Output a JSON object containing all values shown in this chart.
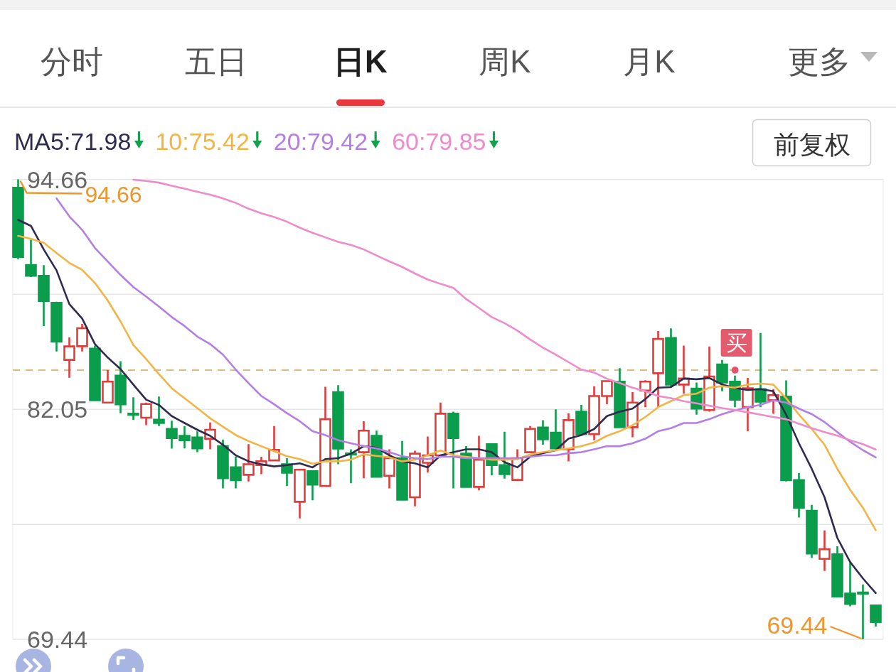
{
  "chart_data": {
    "type": "candlestick",
    "categories": [
      null,
      null,
      null,
      null,
      null,
      null,
      null,
      null,
      null,
      null,
      null,
      null,
      null,
      null,
      null,
      null,
      null,
      null,
      null,
      null,
      null,
      null,
      null,
      null,
      null,
      null,
      null,
      null,
      null,
      null,
      null,
      null,
      null,
      null,
      null,
      null,
      null,
      null,
      null,
      null,
      null,
      null,
      null,
      null,
      null,
      null,
      null,
      null,
      null,
      null,
      null,
      null,
      null,
      null,
      null,
      null,
      null,
      null,
      null,
      null,
      null,
      null,
      null,
      null,
      null,
      null,
      null,
      null
    ],
    "ohlc": [
      [
        94.2,
        94.66,
        90.29,
        90.41
      ],
      [
        89.96,
        91.35,
        89.3,
        89.37
      ],
      [
        89.37,
        89.96,
        86.62,
        87.99
      ],
      [
        87.89,
        87.95,
        85.22,
        85.76
      ],
      [
        84.76,
        85.99,
        83.78,
        85.5
      ],
      [
        85.51,
        86.73,
        85.22,
        86.5
      ],
      [
        85.38,
        85.55,
        82.5,
        82.55
      ],
      [
        82.42,
        84.2,
        82.42,
        83.57
      ],
      [
        83.9,
        84.69,
        81.84,
        82.32
      ],
      [
        81.81,
        82.71,
        81.48,
        81.76
      ],
      [
        81.59,
        82.42,
        81.18,
        82.34
      ],
      [
        81.48,
        82.75,
        81.13,
        81.3
      ],
      [
        80.98,
        81.43,
        79.9,
        80.47
      ],
      [
        80.6,
        81.13,
        79.91,
        80.36
      ],
      [
        80.51,
        80.84,
        79.7,
        79.91
      ],
      [
        80.44,
        81.33,
        79.86,
        80.93
      ],
      [
        80.03,
        80.39,
        77.72,
        78.27
      ],
      [
        78.87,
        79.45,
        77.72,
        78.17
      ],
      [
        78.46,
        80.14,
        78.1,
        79.04
      ],
      [
        78.99,
        79.45,
        78.5,
        79.2
      ],
      [
        79.25,
        81.13,
        79.25,
        79.83
      ],
      [
        79.04,
        79.37,
        77.84,
        78.58
      ],
      [
        76.98,
        78.74,
        76.07,
        78.74
      ],
      [
        78.66,
        78.71,
        77.06,
        77.92
      ],
      [
        77.85,
        83.29,
        77.85,
        81.51
      ],
      [
        82.99,
        83.37,
        79.04,
        79.9
      ],
      [
        79.62,
        79.86,
        78.0,
        79.58
      ],
      [
        79.7,
        81.4,
        78.27,
        80.88
      ],
      [
        80.6,
        80.88,
        78.35,
        78.35
      ],
      [
        78.41,
        79.86,
        77.72,
        79.37
      ],
      [
        79.37,
        80.32,
        77.1,
        77.1
      ],
      [
        77.23,
        79.78,
        76.73,
        79.62
      ],
      [
        79.12,
        80.56,
        78.58,
        79.53
      ],
      [
        79.53,
        82.42,
        79.53,
        81.81
      ],
      [
        81.81,
        81.92,
        77.72,
        80.47
      ],
      [
        79.62,
        80.03,
        77.8,
        77.8
      ],
      [
        77.8,
        80.6,
        77.61,
        79.29
      ],
      [
        80.14,
        80.19,
        78.43,
        78.99
      ],
      [
        78.99,
        80.82,
        78.25,
        78.5
      ],
      [
        78.18,
        79.86,
        78.18,
        79.37
      ],
      [
        79.7,
        81.13,
        79.7,
        80.98
      ],
      [
        81.05,
        81.46,
        80.11,
        80.41
      ],
      [
        80.77,
        82.05,
        79.91,
        79.91
      ],
      [
        79.86,
        81.84,
        79.2,
        81.46
      ],
      [
        81.92,
        82.29,
        80.69,
        80.69
      ],
      [
        80.69,
        83.32,
        80.36,
        82.78
      ],
      [
        82.78,
        83.6,
        82.33,
        83.6
      ],
      [
        83.57,
        84.31,
        81.07,
        81.07
      ],
      [
        81.07,
        82.99,
        80.52,
        82.42
      ],
      [
        83.08,
        83.65,
        82.17,
        83.57
      ],
      [
        84.03,
        86.34,
        82.17,
        85.91
      ],
      [
        85.96,
        86.49,
        83.27,
        83.41
      ],
      [
        83.41,
        85.55,
        82.91,
        83.74
      ],
      [
        83.19,
        83.52,
        81.76,
        82.09
      ],
      [
        82.01,
        85.5,
        81.92,
        83.85
      ],
      [
        84.51,
        84.76,
        83.04,
        83.52
      ],
      [
        83.57,
        83.9,
        82.17,
        82.58
      ],
      [
        82.17,
        83.77,
        80.85,
        83.21
      ],
      [
        83.16,
        86.24,
        82.17,
        82.47
      ],
      [
        82.55,
        83.16,
        81.81,
        82.83
      ],
      [
        82.75,
        83.64,
        78.1,
        78.17
      ],
      [
        78.17,
        78.55,
        76.12,
        76.65
      ],
      [
        76.49,
        76.81,
        73.9,
        74.15
      ],
      [
        73.85,
        75.41,
        73.19,
        74.38
      ],
      [
        74.1,
        74.54,
        71.74,
        71.79
      ],
      [
        71.95,
        73.65,
        71.25,
        71.38
      ],
      [
        72.0,
        72.45,
        69.44,
        71.95
      ],
      [
        71.3,
        71.3,
        70.14,
        70.39
      ]
    ],
    "colors": [
      "#0a9d4b",
      "#0a9d4b",
      "#0a9d4b",
      "#0a9d4b",
      "#e03c3c",
      "#e03c3c",
      "#0a9d4b",
      "#e03c3c",
      "#0a9d4b",
      "#0a9d4b",
      "#e03c3c",
      "#0a9d4b",
      "#0a9d4b",
      "#0a9d4b",
      "#0a9d4b",
      "#e03c3c",
      "#0a9d4b",
      "#0a9d4b",
      "#e03c3c",
      "#e03c3c",
      "#e03c3c",
      "#0a9d4b",
      "#e03c3c",
      "#0a9d4b",
      "#e03c3c",
      "#0a9d4b",
      "#0a9d4b",
      "#e03c3c",
      "#0a9d4b",
      "#e03c3c",
      "#0a9d4b",
      "#e03c3c",
      "#e03c3c",
      "#e03c3c",
      "#0a9d4b",
      "#0a9d4b",
      "#e03c3c",
      "#0a9d4b",
      "#0a9d4b",
      "#e03c3c",
      "#e03c3c",
      "#0a9d4b",
      "#0a9d4b",
      "#e03c3c",
      "#0a9d4b",
      "#e03c3c",
      "#e03c3c",
      "#0a9d4b",
      "#e03c3c",
      "#e03c3c",
      "#e03c3c",
      "#0a9d4b",
      "#e03c3c",
      "#0a9d4b",
      "#e03c3c",
      "#0a9d4b",
      "#0a9d4b",
      "#e03c3c",
      "#0a9d4b",
      "#e03c3c",
      "#0a9d4b",
      "#0a9d4b",
      "#0a9d4b",
      "#e03c3c",
      "#0a9d4b",
      "#0a9d4b",
      "#0a9d4b",
      "#0a9d4b"
    ],
    "series": [
      {
        "type": "line",
        "name": "MA5:71.98",
        "color": "#2e2b4f",
        "values": [
          92.44,
          92.11,
          90.82,
          89.67,
          87.82,
          87.03,
          85.63,
          84.89,
          84.26,
          83.41,
          82.58,
          82.29,
          81.68,
          81.3,
          80.93,
          80.6,
          80.11,
          79.53,
          79.2,
          79.04,
          78.92,
          78.99,
          79.09,
          78.87,
          79.32,
          79.37,
          79.62,
          80.03,
          79.95,
          79.53,
          79.2,
          79.09,
          78.87,
          79.53,
          79.7,
          79.86,
          79.86,
          79.7,
          79.16,
          78.87,
          79.45,
          79.65,
          79.81,
          80.44,
          80.64,
          80.97,
          81.68,
          81.92,
          82.09,
          82.61,
          83.24,
          83.27,
          83.74,
          83.7,
          83.77,
          83.41,
          83.22,
          83.11,
          83.16,
          83.04,
          81.76,
          80.19,
          78.79,
          77.23,
          75.0,
          73.68,
          72.78,
          71.98
        ]
      },
      {
        "type": "line",
        "name": "10:75.42",
        "color": "#f2b545",
        "values": [
          91.56,
          91.4,
          91.18,
          90.62,
          90.08,
          89.7,
          88.98,
          88.02,
          86.87,
          85.58,
          84.81,
          83.98,
          83.21,
          82.66,
          82.12,
          81.56,
          81.1,
          80.64,
          80.31,
          80.03,
          79.75,
          79.48,
          79.32,
          79.07,
          79.2,
          79.2,
          79.29,
          79.58,
          79.5,
          79.42,
          79.2,
          79.29,
          79.53,
          79.8,
          79.53,
          79.45,
          79.37,
          79.29,
          79.29,
          79.32,
          79.58,
          79.7,
          79.81,
          79.91,
          80.03,
          80.23,
          80.6,
          80.85,
          81.18,
          81.63,
          82.17,
          82.5,
          82.83,
          82.91,
          83.24,
          83.32,
          83.24,
          83.41,
          83.46,
          83.41,
          82.66,
          81.76,
          80.97,
          80.11,
          78.79,
          77.64,
          76.65,
          75.42
        ]
      },
      {
        "type": "line",
        "name": "20:79.42",
        "color": "#b47fe3",
        "values": [
          null,
          null,
          null,
          93.62,
          92.63,
          91.89,
          90.9,
          90.16,
          89.42,
          88.76,
          88.23,
          87.69,
          87.11,
          86.62,
          86.04,
          85.63,
          85.05,
          84.23,
          83.49,
          82.78,
          82.33,
          81.84,
          81.4,
          80.85,
          80.64,
          80.36,
          80.19,
          80.03,
          79.91,
          79.7,
          79.48,
          79.37,
          79.32,
          79.45,
          79.45,
          79.37,
          79.37,
          79.37,
          79.37,
          79.37,
          79.45,
          79.53,
          79.53,
          79.65,
          79.7,
          79.86,
          80.03,
          80.03,
          80.19,
          80.44,
          80.85,
          81.02,
          81.3,
          81.3,
          81.51,
          81.79,
          81.99,
          82.17,
          82.29,
          82.55,
          82.42,
          82.09,
          81.79,
          81.35,
          80.8,
          80.27,
          79.81,
          79.42
        ]
      },
      {
        "type": "line",
        "name": "60:79.85",
        "color": "#ee8ccb",
        "values": [
          null,
          null,
          null,
          null,
          null,
          null,
          null,
          null,
          null,
          94.64,
          94.57,
          94.48,
          94.31,
          94.15,
          93.98,
          93.82,
          93.62,
          93.37,
          93.05,
          92.8,
          92.6,
          92.34,
          92.01,
          91.73,
          91.48,
          91.23,
          91.07,
          90.82,
          90.49,
          90.16,
          89.86,
          89.5,
          89.17,
          88.93,
          88.71,
          88.1,
          87.61,
          87.11,
          86.78,
          86.37,
          85.88,
          85.43,
          85.05,
          84.64,
          84.23,
          84.07,
          83.73,
          83.49,
          83.24,
          83.04,
          82.78,
          82.66,
          82.5,
          82.38,
          82.25,
          82.12,
          82.01,
          81.89,
          81.76,
          81.63,
          81.51,
          81.26,
          81.02,
          80.8,
          80.61,
          80.36,
          80.14,
          79.85
        ]
      }
    ],
    "ylim": [
      69.44,
      94.66
    ],
    "yticks": [
      94.66,
      {
        "value": 88.36,
        "label": null
      },
      82.05,
      {
        "value": 75.74,
        "label": null
      },
      69.44
    ],
    "grid": "y",
    "legend": "top left",
    "tick_labels": "y",
    "ref_lines": [
      {
        "axis": "y",
        "value": 84.2,
        "color": "#d6a158",
        "line_style": "dashed"
      }
    ],
    "annotations": [
      "分时",
      "五日",
      "**日K**",
      "周K",
      "月K",
      "更多",
      "前复权",
      "94.66",
      "69.44",
      {
        "text": "买",
        "y": 84.2
      }
    ]
  }
}
